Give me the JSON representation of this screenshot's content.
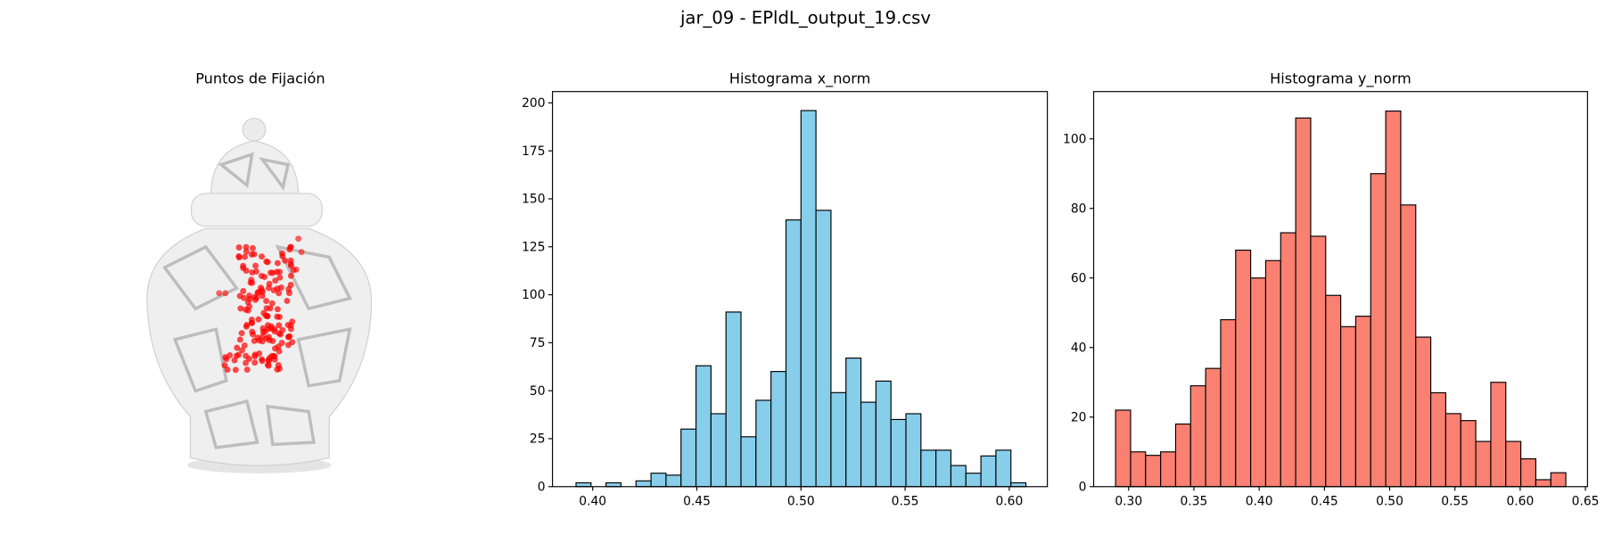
{
  "title": "jar_09 - EPldL_output_19.csv",
  "image_panel": {
    "title": "Puntos de Fijación"
  },
  "chart_data": [
    {
      "type": "histogram",
      "title": "Histograma x_norm",
      "color": "#87ceeb",
      "edgecolor": "#000000",
      "bins": [
        0.392,
        0.3992,
        0.4064,
        0.4136,
        0.4208,
        0.428,
        0.4352,
        0.4424,
        0.4496,
        0.4568,
        0.464,
        0.4712,
        0.4784,
        0.4856,
        0.4928,
        0.5,
        0.5072,
        0.5144,
        0.5216,
        0.5288,
        0.536,
        0.5432,
        0.5504,
        0.5576,
        0.5648,
        0.572,
        0.5792,
        0.5864,
        0.5936,
        0.6008,
        0.608
      ],
      "values": [
        2,
        0,
        2,
        0,
        3,
        7,
        6,
        30,
        63,
        38,
        91,
        26,
        45,
        60,
        139,
        196,
        144,
        49,
        67,
        44,
        55,
        35,
        38,
        19,
        19,
        11,
        7,
        16,
        19,
        2
      ],
      "xlim": [
        0.3807,
        0.6183
      ],
      "ylim": [
        0,
        205.9
      ],
      "xticks": [
        {
          "value": 0.4,
          "label": "0.40"
        },
        {
          "value": 0.45,
          "label": "0.45"
        },
        {
          "value": 0.5,
          "label": "0.50"
        },
        {
          "value": 0.55,
          "label": "0.55"
        },
        {
          "value": 0.6,
          "label": "0.60"
        }
      ],
      "yticks": [
        0,
        25,
        50,
        75,
        100,
        125,
        150,
        175,
        200
      ]
    },
    {
      "type": "histogram",
      "title": "Histograma y_norm",
      "color": "#fa8072",
      "edgecolor": "#000000",
      "bins": [
        0.29,
        0.3015,
        0.313,
        0.3245,
        0.336,
        0.3475,
        0.359,
        0.3705,
        0.382,
        0.3935,
        0.405,
        0.4165,
        0.428,
        0.4395,
        0.451,
        0.4625,
        0.474,
        0.4855,
        0.497,
        0.5085,
        0.52,
        0.5315,
        0.543,
        0.5545,
        0.566,
        0.5775,
        0.589,
        0.6005,
        0.612,
        0.6235,
        0.635
      ],
      "values": [
        22,
        10,
        9,
        10,
        18,
        29,
        34,
        48,
        68,
        60,
        65,
        73,
        106,
        72,
        55,
        46,
        49,
        90,
        108,
        81,
        43,
        27,
        21,
        19,
        13,
        30,
        13,
        8,
        2,
        4
      ],
      "xlim": [
        0.2732,
        0.6516
      ],
      "ylim": [
        0,
        113.6
      ],
      "xticks": [
        {
          "value": 0.3,
          "label": "0.30"
        },
        {
          "value": 0.35,
          "label": "0.35"
        },
        {
          "value": 0.4,
          "label": "0.40"
        },
        {
          "value": 0.45,
          "label": "0.45"
        },
        {
          "value": 0.5,
          "label": "0.50"
        },
        {
          "value": 0.55,
          "label": "0.55"
        },
        {
          "value": 0.6,
          "label": "0.60"
        },
        {
          "value": 0.65,
          "label": "0.65"
        }
      ],
      "yticks": [
        0,
        20,
        40,
        60,
        80,
        100
      ]
    }
  ]
}
